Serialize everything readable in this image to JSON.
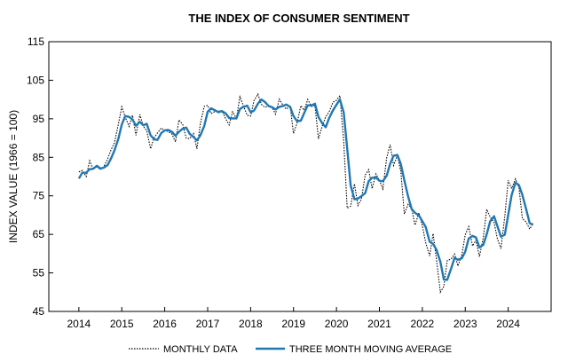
{
  "chart_data": {
    "type": "line",
    "title": "THE INDEX OF CONSUMER SENTIMENT",
    "ylabel": "INDEX VALUE (1966 = 100)",
    "xlabel": "",
    "ylim": [
      45,
      115
    ],
    "xlim": [
      2013.3,
      2025.0
    ],
    "yticks": [
      "115",
      "105",
      "95",
      "85",
      "75",
      "65",
      "55",
      "45"
    ],
    "yticks_values": [
      115,
      105,
      95,
      85,
      75,
      65,
      55,
      45
    ],
    "xticks": [
      "2014",
      "2015",
      "2016",
      "2017",
      "2018",
      "2019",
      "2020",
      "2021",
      "2022",
      "2023",
      "2024"
    ],
    "xticks_values": [
      2014,
      2015,
      2016,
      2017,
      2018,
      2019,
      2020,
      2021,
      2022,
      2023,
      2024
    ],
    "grid": false,
    "legend_position": "bottom",
    "series": [
      {
        "name": "MONTHLY DATA",
        "style": "dotted",
        "color": "#000000",
        "x": [
          2014.0,
          2014.08,
          2014.17,
          2014.25,
          2014.33,
          2014.42,
          2014.5,
          2014.58,
          2014.67,
          2014.75,
          2014.83,
          2014.92,
          2015.0,
          2015.08,
          2015.17,
          2015.25,
          2015.33,
          2015.42,
          2015.5,
          2015.58,
          2015.67,
          2015.75,
          2015.83,
          2015.92,
          2016.0,
          2016.08,
          2016.17,
          2016.25,
          2016.33,
          2016.42,
          2016.5,
          2016.58,
          2016.67,
          2016.75,
          2016.83,
          2016.92,
          2017.0,
          2017.08,
          2017.17,
          2017.25,
          2017.33,
          2017.42,
          2017.5,
          2017.58,
          2017.67,
          2017.75,
          2017.83,
          2017.92,
          2018.0,
          2018.08,
          2018.17,
          2018.25,
          2018.33,
          2018.42,
          2018.5,
          2018.58,
          2018.67,
          2018.75,
          2018.83,
          2018.92,
          2019.0,
          2019.08,
          2019.17,
          2019.25,
          2019.33,
          2019.42,
          2019.5,
          2019.58,
          2019.67,
          2019.75,
          2019.83,
          2019.92,
          2020.0,
          2020.08,
          2020.17,
          2020.25,
          2020.33,
          2020.42,
          2020.5,
          2020.58,
          2020.67,
          2020.75,
          2020.83,
          2020.92,
          2021.0,
          2021.08,
          2021.17,
          2021.25,
          2021.33,
          2021.42,
          2021.5,
          2021.58,
          2021.67,
          2021.75,
          2021.83,
          2021.92,
          2022.0,
          2022.08,
          2022.17,
          2022.25,
          2022.33,
          2022.42,
          2022.5,
          2022.58,
          2022.67,
          2022.75,
          2022.83,
          2022.92,
          2023.0,
          2023.08,
          2023.17,
          2023.25,
          2023.33,
          2023.42,
          2023.5,
          2023.58,
          2023.67,
          2023.75,
          2023.83,
          2023.92,
          2024.0,
          2024.08,
          2024.17,
          2024.25,
          2024.33,
          2024.42,
          2024.5,
          2024.58
        ],
        "values": [
          81.2,
          81.6,
          80.0,
          84.1,
          81.9,
          82.5,
          81.8,
          82.5,
          84.6,
          86.9,
          88.8,
          93.6,
          98.1,
          95.4,
          93.0,
          95.9,
          90.7,
          96.1,
          93.1,
          91.9,
          87.2,
          90.0,
          91.3,
          92.6,
          92.0,
          91.7,
          91.0,
          89.0,
          94.7,
          93.5,
          90.0,
          89.8,
          91.2,
          87.2,
          93.8,
          98.2,
          98.5,
          96.3,
          96.9,
          97.0,
          97.1,
          95.0,
          93.4,
          96.8,
          95.1,
          100.7,
          98.5,
          95.9,
          95.7,
          99.7,
          101.4,
          98.8,
          98.0,
          98.2,
          97.9,
          96.2,
          100.1,
          98.6,
          97.5,
          98.3,
          91.2,
          93.8,
          98.4,
          97.2,
          100.0,
          98.2,
          98.4,
          89.8,
          93.2,
          95.5,
          96.8,
          99.3,
          99.8,
          101.0,
          89.1,
          71.8,
          72.3,
          78.1,
          72.5,
          74.1,
          80.4,
          81.8,
          76.9,
          80.7,
          79.0,
          76.8,
          84.9,
          88.3,
          82.9,
          85.5,
          81.2,
          70.3,
          72.8,
          71.7,
          67.4,
          70.6,
          67.2,
          62.8,
          59.4,
          65.2,
          58.4,
          50.0,
          51.5,
          58.2,
          58.6,
          59.9,
          56.8,
          59.7,
          64.9,
          67.0,
          62.0,
          63.5,
          59.2,
          64.2,
          71.5,
          69.5,
          68.1,
          63.8,
          61.3,
          69.7,
          79.0,
          76.9,
          79.4,
          77.2,
          69.1,
          68.2,
          66.4,
          67.9
        ]
      },
      {
        "name": "THREE MONTH MOVING AVERAGE",
        "style": "solid",
        "color": "#1f78b4",
        "x": [
          2014.0,
          2014.08,
          2014.17,
          2014.25,
          2014.33,
          2014.42,
          2014.5,
          2014.58,
          2014.67,
          2014.75,
          2014.83,
          2014.92,
          2015.0,
          2015.08,
          2015.17,
          2015.25,
          2015.33,
          2015.42,
          2015.5,
          2015.58,
          2015.67,
          2015.75,
          2015.83,
          2015.92,
          2016.0,
          2016.08,
          2016.17,
          2016.25,
          2016.33,
          2016.42,
          2016.5,
          2016.58,
          2016.67,
          2016.75,
          2016.83,
          2016.92,
          2017.0,
          2017.08,
          2017.17,
          2017.25,
          2017.33,
          2017.42,
          2017.5,
          2017.58,
          2017.67,
          2017.75,
          2017.83,
          2017.92,
          2018.0,
          2018.08,
          2018.17,
          2018.25,
          2018.33,
          2018.42,
          2018.5,
          2018.58,
          2018.67,
          2018.75,
          2018.83,
          2018.92,
          2019.0,
          2019.08,
          2019.17,
          2019.25,
          2019.33,
          2019.42,
          2019.5,
          2019.58,
          2019.67,
          2019.75,
          2019.83,
          2019.92,
          2020.0,
          2020.08,
          2020.17,
          2020.25,
          2020.33,
          2020.42,
          2020.5,
          2020.58,
          2020.67,
          2020.75,
          2020.83,
          2020.92,
          2021.0,
          2021.08,
          2021.17,
          2021.25,
          2021.33,
          2021.42,
          2021.5,
          2021.58,
          2021.67,
          2021.75,
          2021.83,
          2021.92,
          2022.0,
          2022.08,
          2022.17,
          2022.25,
          2022.33,
          2022.42,
          2022.5,
          2022.58,
          2022.67,
          2022.75,
          2022.83,
          2022.92,
          2023.0,
          2023.08,
          2023.17,
          2023.25,
          2023.33,
          2023.42,
          2023.5,
          2023.58,
          2023.67,
          2023.75,
          2023.83,
          2023.92,
          2024.0,
          2024.08,
          2024.17,
          2024.25,
          2024.33,
          2024.42,
          2024.5,
          2024.58
        ],
        "values": [
          79.5,
          81.0,
          81.0,
          81.9,
          82.0,
          82.8,
          82.1,
          82.3,
          83.0,
          84.7,
          86.8,
          89.8,
          93.5,
          95.7,
          95.5,
          94.8,
          93.2,
          94.2,
          93.3,
          93.7,
          90.7,
          89.7,
          89.5,
          91.3,
          92.0,
          92.1,
          91.6,
          90.6,
          91.6,
          92.4,
          92.7,
          91.1,
          90.3,
          89.4,
          90.7,
          93.1,
          96.8,
          97.7,
          97.2,
          96.7,
          97.0,
          96.4,
          95.2,
          95.1,
          95.1,
          97.5,
          98.1,
          98.4,
          96.7,
          97.1,
          98.9,
          100.0,
          99.4,
          98.3,
          98.0,
          97.4,
          98.1,
          98.3,
          98.7,
          98.1,
          95.7,
          94.4,
          94.5,
          96.5,
          98.5,
          98.5,
          98.9,
          95.5,
          93.8,
          92.8,
          95.2,
          97.2,
          98.6,
          100.0,
          96.6,
          87.3,
          77.7,
          74.1,
          74.3,
          74.9,
          75.7,
          78.8,
          79.7,
          79.8,
          78.9,
          78.8,
          80.2,
          83.3,
          85.4,
          85.6,
          83.2,
          79.0,
          74.8,
          71.6,
          70.6,
          69.9,
          68.4,
          66.9,
          63.1,
          62.5,
          61.0,
          57.9,
          53.3,
          53.2,
          56.1,
          58.9,
          58.4,
          58.8,
          60.5,
          63.9,
          64.6,
          64.2,
          61.6,
          62.3,
          65.0,
          68.4,
          69.7,
          67.1,
          64.4,
          64.9,
          70.0,
          75.2,
          78.4,
          77.8,
          75.2,
          71.5,
          67.9,
          67.5
        ]
      }
    ]
  }
}
